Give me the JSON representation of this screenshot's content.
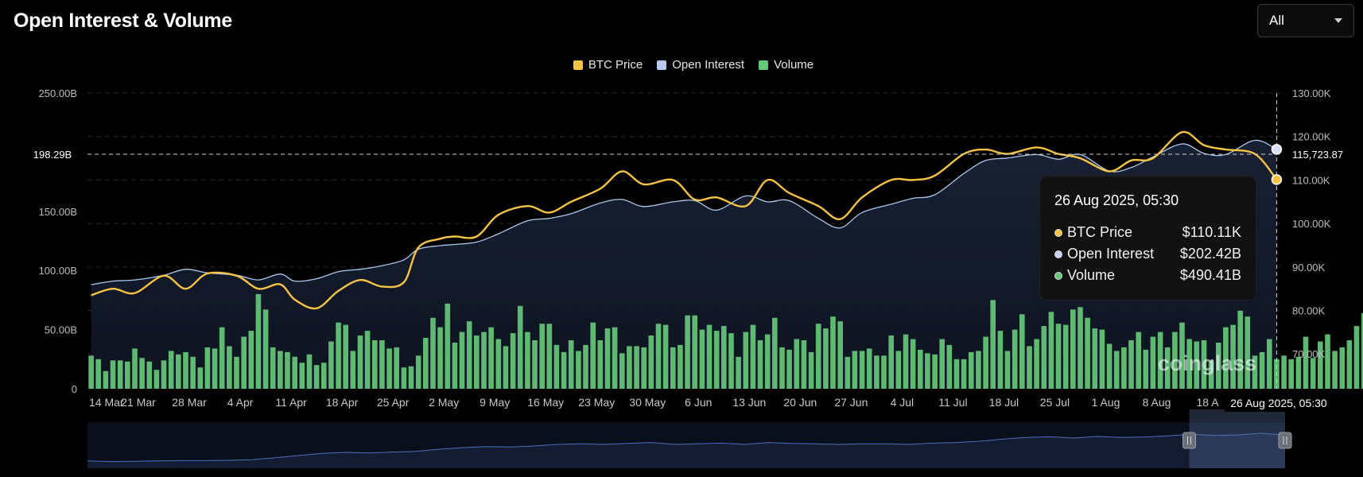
{
  "header": {
    "title": "Open Interest & Volume",
    "range": {
      "selected": "All"
    }
  },
  "colors": {
    "price": "#f6c343",
    "open_interest": "#a9c8ee",
    "volume": "#65c97a",
    "background": "#000000"
  },
  "crosshair": {
    "left_label": "198.29B",
    "right_label": "115,723.87",
    "bottom_label": "26 Aug 2025, 05:30"
  },
  "tooltip": {
    "title": "26 Aug 2025, 05:30",
    "rows": [
      {
        "label": "BTC Price",
        "value": "$110.11K"
      },
      {
        "label": "Open Interest",
        "value": "$202.42B"
      },
      {
        "label": "Volume",
        "value": "$490.41B"
      }
    ]
  },
  "watermark": "coinglass",
  "chart_data": {
    "type": "bar",
    "legend": [
      "BTC Price",
      "Open Interest",
      "Volume"
    ],
    "legend_position": "top-center",
    "x_ticks": [
      "14 Mar",
      "21 Mar",
      "28 Mar",
      "4 Apr",
      "11 Apr",
      "18 Apr",
      "25 Apr",
      "2 May",
      "9 May",
      "16 May",
      "23 May",
      "30 May",
      "6 Jun",
      "13 Jun",
      "20 Jun",
      "27 Jun",
      "4 Jul",
      "11 Jul",
      "18 Jul",
      "25 Jul",
      "1 Aug",
      "8 Aug",
      "18 A"
    ],
    "y_left": {
      "ticks": [
        "250.00B",
        "150.00B",
        "100.00B",
        "50.00B",
        "0"
      ],
      "range": [
        0,
        250
      ]
    },
    "y_right": {
      "ticks": [
        "130.00K",
        "120.00K",
        "110.00K",
        "100.00K",
        "90.00K",
        "80.00K",
        "70.00K"
      ],
      "range": [
        62,
        130
      ]
    },
    "grid": true,
    "series": [
      {
        "name": "BTC Price",
        "axis": "right",
        "x": [
          0,
          3,
          6,
          10,
          13,
          16,
          20,
          23,
          26,
          28,
          31,
          34,
          37,
          40,
          43,
          45,
          48,
          50,
          53,
          56,
          60,
          63,
          66,
          70,
          73,
          76,
          80,
          83,
          86,
          90,
          93,
          96,
          100,
          103,
          106,
          110,
          113,
          116,
          120,
          123,
          126,
          130,
          133,
          136,
          140,
          143,
          146,
          150,
          153,
          156,
          160,
          163
        ],
        "values": [
          83.5,
          85,
          84,
          88,
          85,
          88.5,
          88,
          85,
          86,
          82.5,
          80.5,
          84.5,
          87,
          85.5,
          86.5,
          94.5,
          96.5,
          97,
          97,
          102,
          104,
          102.5,
          105,
          108,
          112,
          109,
          110,
          105.5,
          106,
          104,
          110,
          107,
          104,
          101,
          106,
          110,
          110,
          111,
          116,
          117,
          116,
          117.5,
          116,
          115,
          112,
          114.5,
          115,
          121,
          118,
          117,
          116,
          110.1
        ]
      },
      {
        "name": "Open Interest",
        "axis": "left",
        "x": [
          0,
          3,
          6,
          10,
          13,
          16,
          20,
          23,
          26,
          28,
          31,
          34,
          37,
          40,
          43,
          45,
          48,
          50,
          53,
          56,
          60,
          63,
          66,
          70,
          73,
          76,
          80,
          83,
          86,
          90,
          93,
          96,
          100,
          103,
          106,
          110,
          113,
          116,
          120,
          123,
          126,
          130,
          133,
          136,
          140,
          143,
          146,
          150,
          153,
          156,
          160,
          163
        ],
        "values": [
          88,
          91,
          92,
          96,
          101,
          98,
          96,
          92,
          97,
          91,
          93,
          99,
          101,
          104,
          109,
          118,
          121,
          122,
          124,
          131,
          142,
          144,
          148,
          157,
          160,
          154,
          158,
          159,
          151,
          163,
          158,
          159,
          144,
          136,
          149,
          156,
          161,
          164,
          182,
          193,
          195,
          198,
          194,
          198,
          184,
          187,
          196,
          207,
          199,
          198,
          210,
          202.4
        ]
      },
      {
        "name": "Volume",
        "axis": "left",
        "values": [
          28,
          25,
          15,
          24,
          24,
          23,
          34,
          26,
          23,
          16,
          24,
          32,
          29,
          31,
          27,
          18,
          35,
          34,
          52,
          36,
          27,
          44,
          49,
          80,
          67,
          35,
          32,
          31,
          27,
          22,
          29,
          20,
          22,
          40,
          56,
          54,
          32,
          45,
          49,
          41,
          41,
          34,
          35,
          18,
          19,
          28,
          43,
          60,
          52,
          72,
          39,
          48,
          57,
          45,
          48,
          52,
          42,
          36,
          47,
          70,
          48,
          41,
          55,
          55,
          37,
          31,
          41,
          32,
          37,
          56,
          41,
          51,
          52,
          30,
          36,
          36,
          35,
          45,
          55,
          54,
          35,
          37,
          62,
          62,
          50,
          54,
          49,
          53,
          47,
          27,
          48,
          54,
          41,
          46,
          60,
          35,
          33,
          42,
          41,
          31,
          55,
          51,
          61,
          57,
          27,
          32,
          32,
          34,
          28,
          28,
          45,
          32,
          46,
          42,
          33,
          30,
          29,
          42,
          37,
          25,
          25,
          31,
          32,
          44,
          75,
          49,
          32,
          50,
          63,
          36,
          42,
          53,
          65,
          55,
          54,
          67,
          69,
          60,
          51,
          50,
          38,
          32,
          35,
          41,
          48,
          33,
          44,
          48,
          35,
          48,
          56,
          42,
          40,
          41,
          24,
          39,
          52,
          54,
          66,
          61,
          28,
          31,
          42,
          25,
          28,
          25,
          27,
          44,
          26,
          40,
          46,
          32,
          35,
          41,
          53,
          64,
          53,
          61,
          65,
          77,
          54,
          71,
          69,
          33,
          60,
          68,
          71,
          66,
          30,
          73,
          63,
          56,
          58,
          30,
          57,
          61,
          52,
          47,
          77,
          66,
          26,
          32,
          44,
          82
        ]
      }
    ],
    "overview_series": [
      0.08,
      0.06,
      0.07,
      0.08,
      0.09,
      0.09,
      0.1,
      0.12,
      0.18,
      0.25,
      0.32,
      0.35,
      0.33,
      0.36,
      0.38,
      0.45,
      0.5,
      0.53,
      0.52,
      0.55,
      0.6,
      0.62,
      0.6,
      0.63,
      0.66,
      0.6,
      0.62,
      0.64,
      0.6,
      0.66,
      0.63,
      0.62,
      0.6,
      0.62,
      0.62,
      0.6,
      0.64,
      0.66,
      0.7,
      0.77,
      0.82,
      0.84,
      0.8,
      0.85,
      0.82,
      0.83,
      0.87,
      0.92,
      0.88,
      0.9,
      0.95,
      0.9
    ],
    "overview_window": [
      0.92,
      1.0
    ]
  }
}
